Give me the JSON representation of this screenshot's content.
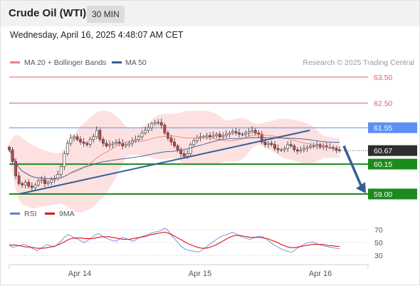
{
  "header": {
    "instrument": "Crude Oil (WTI)",
    "timeframe": "30 MIN",
    "timestamp": "Wednesday, April 16, 2025 4:48:07 AM CET"
  },
  "legend": {
    "ma20_label": "MA 20 + Bollinger Bands",
    "ma50_label": "MA 50",
    "credit": "Research © 2025 Trading Central",
    "rsi_label": "RSI",
    "rsi_ma_label": "9MA"
  },
  "colors": {
    "ma20": "#f08080",
    "ma50": "#3a5f95",
    "band_fill": "#fde1e1",
    "resistance": "#e06060",
    "pivot_blue": "#5b8ff5",
    "support": "#1c8a1c",
    "current_price_bg": "#2d2d2d",
    "arrow": "#335f96",
    "rsi": "#5b7fdb",
    "rsi_ma": "#e01010",
    "candle_up": "#ffffff",
    "candle_down": "#d04040"
  },
  "chart_data": [
    {
      "type": "candlestick",
      "x_labels": [
        "Apr 14",
        "Apr 15",
        "Apr 16"
      ],
      "price_levels": [
        {
          "value": 63.5,
          "label": "63.50",
          "kind": "resistance"
        },
        {
          "value": 62.5,
          "label": "62.50",
          "kind": "resistance"
        },
        {
          "value": 61.55,
          "label": "61.55",
          "kind": "pivot"
        },
        {
          "value": 60.67,
          "label": "60.67",
          "kind": "last"
        },
        {
          "value": 60.15,
          "label": "60.15",
          "kind": "support"
        },
        {
          "value": 59.0,
          "label": "59.00",
          "kind": "support"
        }
      ],
      "ylim": [
        58.6,
        64.2
      ],
      "trendline": {
        "x": [
          0.03,
          0.91
        ],
        "y": [
          59.0,
          61.45
        ]
      },
      "forecast_arrow": {
        "from": 60.85,
        "to": 59.05
      },
      "series_close": [
        60.7,
        60.25,
        59.7,
        59.4,
        59.35,
        59.45,
        59.3,
        59.25,
        59.35,
        59.5,
        59.55,
        59.4,
        59.45,
        59.55,
        59.6,
        59.75,
        60.05,
        60.55,
        60.95,
        61.15,
        61.2,
        61.1,
        61.0,
        60.95,
        60.9,
        61.1,
        61.2,
        61.45,
        61.1,
        60.95,
        60.85,
        60.9,
        60.95,
        61.0,
        60.95,
        60.85,
        60.9,
        60.95,
        61.05,
        61.1,
        61.2,
        61.35,
        61.45,
        61.55,
        61.7,
        61.75,
        61.75,
        61.65,
        61.35,
        61.15,
        61.0,
        60.85,
        60.7,
        60.55,
        60.45,
        60.55,
        60.9,
        61.05,
        61.15,
        61.2,
        61.2,
        61.25,
        61.2,
        61.25,
        61.3,
        61.2,
        61.25,
        61.3,
        61.35,
        61.4,
        61.35,
        61.3,
        61.3,
        61.35,
        61.4,
        61.45,
        61.35,
        61.3,
        61.0,
        60.9,
        60.95,
        60.9,
        60.75,
        60.7,
        60.7,
        60.75,
        60.9,
        60.85,
        60.7,
        60.65,
        60.7,
        60.75,
        60.8,
        60.85,
        60.85,
        60.9,
        60.8,
        60.85,
        60.8,
        60.8,
        60.75,
        60.7,
        60.67
      ]
    },
    {
      "type": "line",
      "title": "RSI",
      "y_ticks": [
        "70",
        "50",
        "30"
      ],
      "ylim": [
        22,
        78
      ],
      "series": [
        {
          "name": "RSI",
          "values": [
            48,
            42,
            44,
            45,
            47,
            46,
            43,
            40,
            37,
            40,
            44,
            47,
            45,
            43,
            47,
            52,
            58,
            62,
            60,
            57,
            55,
            52,
            50,
            54,
            58,
            62,
            64,
            60,
            57,
            55,
            53,
            52,
            55,
            58,
            56,
            54,
            52,
            55,
            58,
            60,
            62,
            64,
            66,
            67,
            68,
            72,
            70,
            62,
            56,
            50,
            44,
            40,
            38,
            37,
            36,
            35,
            38,
            42,
            46,
            50,
            54,
            58,
            60,
            62,
            64,
            66,
            63,
            60,
            58,
            56,
            55,
            57,
            59,
            60,
            58,
            54,
            50,
            46,
            43,
            40,
            38,
            36,
            35,
            38,
            42,
            45,
            48,
            50,
            51,
            49,
            47,
            45,
            44,
            43,
            42,
            41,
            40
          ]
        },
        {
          "name": "9MA",
          "values": [
            45,
            46,
            46,
            45,
            44,
            43,
            43,
            42,
            41,
            41,
            41,
            42,
            43,
            44,
            46,
            48,
            51,
            54,
            56,
            57,
            57,
            57,
            56,
            56,
            56,
            57,
            58,
            59,
            59,
            59,
            58,
            57,
            56,
            55,
            55,
            55,
            56,
            57,
            58,
            59,
            60,
            62,
            63,
            64,
            65,
            66,
            65,
            63,
            60,
            57,
            54,
            51,
            48,
            46,
            44,
            42,
            41,
            41,
            42,
            44,
            46,
            49,
            52,
            55,
            58,
            60,
            61,
            61,
            60,
            59,
            58,
            58,
            58,
            58,
            57,
            56,
            54,
            52,
            50,
            47,
            45,
            43,
            42,
            42,
            43,
            44,
            45,
            46,
            47,
            47,
            47,
            47,
            46,
            45,
            45,
            44,
            44
          ]
        }
      ]
    }
  ]
}
